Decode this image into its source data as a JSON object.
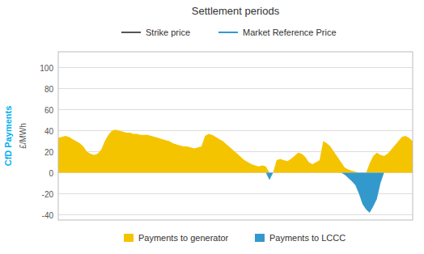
{
  "chart_data": {
    "type": "area",
    "title": "Settlement periods",
    "ylabel": "£/MWh",
    "ylabel_outer": "CfD Payments",
    "x": [
      0,
      1,
      2,
      3,
      4,
      5,
      6,
      7,
      8,
      9,
      10,
      11,
      12,
      13,
      14,
      15,
      16,
      17,
      18,
      19,
      20,
      21,
      22,
      23,
      24,
      25,
      26,
      27,
      28,
      29,
      30,
      31,
      32,
      33,
      34,
      35,
      36,
      37,
      38,
      39,
      40,
      41,
      42,
      43,
      44,
      45,
      46,
      47,
      48,
      49,
      50,
      51,
      52,
      53,
      54,
      55,
      56,
      57,
      58,
      59,
      60,
      61,
      62,
      63,
      64,
      65,
      66,
      67,
      68,
      69,
      70,
      71,
      72,
      73,
      74,
      75,
      76,
      77,
      78,
      79,
      80,
      81,
      82,
      83,
      84,
      85,
      86,
      87,
      88,
      89,
      90,
      91,
      92,
      93,
      94,
      95,
      96,
      97,
      98,
      99
    ],
    "series": [
      {
        "name": "Payments to generator",
        "color": "#F5C400",
        "values": [
          33,
          34,
          35,
          34,
          32,
          30,
          28,
          25,
          20,
          18,
          17,
          18,
          22,
          30,
          36,
          40,
          41,
          40,
          39,
          38,
          38,
          37,
          37,
          36,
          36,
          36,
          35,
          34,
          33,
          32,
          31,
          30,
          28,
          27,
          26,
          25,
          25,
          24,
          23,
          24,
          25,
          35,
          37,
          36,
          34,
          32,
          30,
          27,
          24,
          21,
          18,
          15,
          12,
          10,
          8,
          7,
          6,
          7,
          6,
          0,
          0,
          12,
          13,
          12,
          11,
          13,
          16,
          19,
          18,
          15,
          10,
          8,
          10,
          12,
          30,
          28,
          25,
          20,
          15,
          10,
          5,
          3,
          2,
          1,
          0,
          0,
          0,
          9,
          16,
          19,
          17,
          16,
          18,
          22,
          26,
          30,
          34,
          35,
          33,
          30
        ]
      },
      {
        "name": "Payments to LCCC",
        "color": "#3399CC",
        "values": [
          0,
          0,
          0,
          0,
          0,
          0,
          0,
          0,
          0,
          0,
          0,
          0,
          0,
          0,
          0,
          0,
          0,
          0,
          0,
          0,
          0,
          0,
          0,
          0,
          0,
          0,
          0,
          0,
          0,
          0,
          0,
          0,
          0,
          0,
          0,
          0,
          0,
          0,
          0,
          0,
          0,
          0,
          0,
          0,
          0,
          0,
          0,
          0,
          0,
          0,
          0,
          0,
          0,
          0,
          0,
          0,
          0,
          0,
          0,
          -7,
          0,
          0,
          0,
          0,
          0,
          0,
          0,
          0,
          0,
          0,
          0,
          0,
          0,
          0,
          0,
          0,
          0,
          0,
          0,
          0,
          -2,
          -5,
          -8,
          -12,
          -20,
          -30,
          -35,
          -38,
          -32,
          -25,
          -10,
          0,
          0,
          0,
          0,
          0,
          0,
          0,
          0,
          0
        ]
      }
    ],
    "annotations": [
      {
        "text": "Strike price",
        "color": "#555555"
      },
      {
        "text": "Market Reference Price",
        "color": "#3399CC"
      }
    ],
    "xlim": [
      0,
      99
    ],
    "ylim": [
      -45,
      115
    ],
    "yticks": [
      -40,
      -20,
      0,
      20,
      40,
      60,
      80,
      100
    ],
    "grid": true,
    "legend": "bottom",
    "tick_labels": "y"
  }
}
